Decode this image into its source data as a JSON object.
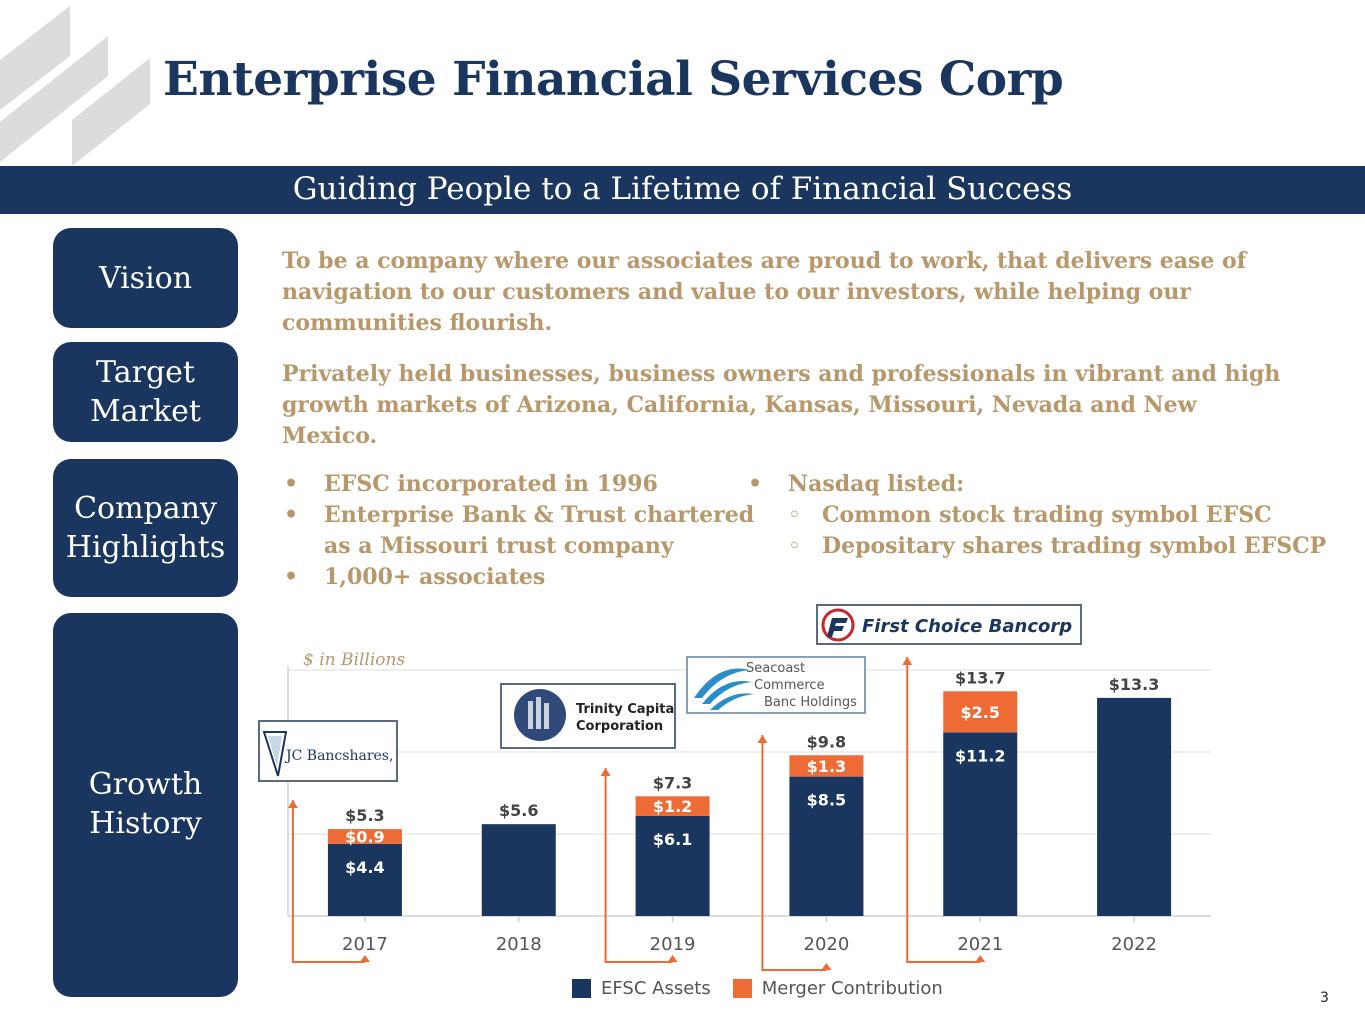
{
  "header": {
    "title": "Enterprise Financial Services Corp",
    "tagline": "Guiding People to a Lifetime of Financial Success"
  },
  "sections": {
    "vision": {
      "label": "Vision",
      "text": "To be a company where our associates are proud to work, that delivers ease of navigation to our customers and value to our investors, while helping our communities flourish."
    },
    "target_market": {
      "label_line1": "Target",
      "label_line2": "Market",
      "text": "Privately held businesses, business owners and professionals in vibrant and high growth markets of Arizona, California, Kansas, Missouri, Nevada and New Mexico."
    },
    "highlights": {
      "label_line1": "Company",
      "label_line2": "Highlights",
      "bullet_glyph": "•",
      "sub_glyph": "◦",
      "left": {
        "b1": "EFSC incorporated in 1996",
        "b2_line1": "Enterprise Bank & Trust chartered",
        "b2_line2": "as a Missouri trust company",
        "b3": "1,000+ associates"
      },
      "right": {
        "b1": "Nasdaq listed:",
        "s1": "Common stock trading symbol EFSC",
        "s2": "Depositary shares trading symbol EFSCP"
      }
    },
    "growth": {
      "label_line1": "Growth",
      "label_line2": "History"
    }
  },
  "logos": {
    "jc": "JC Bancshares, Inc.",
    "trinity_line1": "Trinity Capital",
    "trinity_line2": "Corporation",
    "seacoast_line1": "Seacoast",
    "seacoast_line2": "Commerce",
    "seacoast_line3": "Banc Holdings",
    "first_choice": "First Choice Bancorp"
  },
  "chart_data": {
    "type": "bar",
    "stacked": true,
    "units_note": "$ in Billions",
    "categories": [
      "2017",
      "2018",
      "2019",
      "2020",
      "2021",
      "2022"
    ],
    "series": [
      {
        "name": "EFSC Assets",
        "color": "#1a365f",
        "values": [
          4.4,
          5.6,
          6.1,
          8.5,
          11.2,
          13.3
        ]
      },
      {
        "name": "Merger Contribution",
        "color": "#ef6b35",
        "values": [
          0.9,
          0,
          1.2,
          1.3,
          2.5,
          0
        ]
      }
    ],
    "segment_labels": {
      "EFSC Assets": [
        "$4.4",
        "",
        "$6.1",
        "$8.5",
        "$11.2",
        ""
      ],
      "Merger Contribution": [
        "$0.9",
        "",
        "$1.2",
        "$1.3",
        "$2.5",
        ""
      ]
    },
    "totals": [
      "$5.3",
      "$5.6",
      "$7.3",
      "$9.8",
      "$13.7",
      "$13.3"
    ],
    "ylim": [
      0,
      15
    ],
    "grid": true,
    "legend": "bottom",
    "acquisitions": [
      {
        "year": "2017",
        "logo": "JC Bancshares, Inc."
      },
      {
        "year": "2019",
        "logo": "Trinity Capital Corporation"
      },
      {
        "year": "2020",
        "logo": "Seacoast Commerce Banc Holdings"
      },
      {
        "year": "2021",
        "logo": "First Choice Bancorp"
      }
    ],
    "arrow_color": "#ef6b35"
  },
  "page_number": "3"
}
